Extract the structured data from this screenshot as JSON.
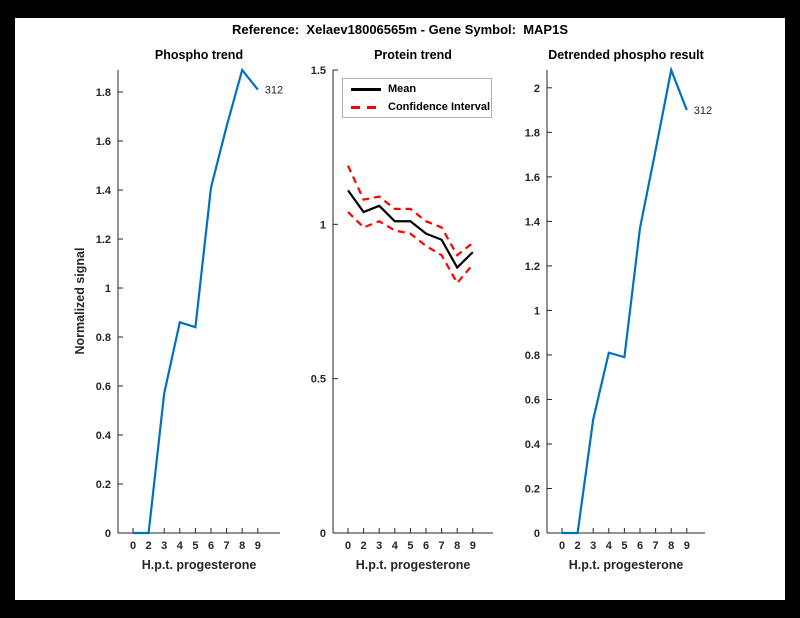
{
  "figure": {
    "title": "Reference:  Xelaev18006565m - Gene Symbol:  MAP1S",
    "background": "#ffffff",
    "page_background": "#000000",
    "axis_color": "#262626"
  },
  "chart_data": [
    {
      "type": "line",
      "title": "Phospho trend",
      "xlabel": "H.p.t. progesterone",
      "ylabel": "Normalized signal",
      "x_ticklabels": [
        "0",
        "2",
        "3",
        "4",
        "5",
        "6",
        "7",
        "8",
        "9"
      ],
      "y_tick_values": [
        0,
        0.2,
        0.4,
        0.6,
        0.8,
        1,
        1.2,
        1.4,
        1.6,
        1.8
      ],
      "y_tick_labels": [
        "0",
        "0.2",
        "0.4",
        "0.6",
        "0.8",
        "1",
        "1.2",
        "1.4",
        "1.6",
        "1.8"
      ],
      "ylim": [
        0,
        1.89
      ],
      "grid": false,
      "series": [
        {
          "name": "Phospho signal",
          "color": "#0072BD",
          "style": "solid",
          "values": [
            0,
            0,
            0.57,
            0.86,
            0.84,
            1.41,
            1.66,
            1.89,
            1.81
          ]
        }
      ],
      "annotation": {
        "text": "312",
        "point_index": 8
      }
    },
    {
      "type": "line",
      "title": "Protein trend",
      "xlabel": "H.p.t. progesterone",
      "ylabel": "",
      "x_ticklabels": [
        "0",
        "2",
        "3",
        "4",
        "5",
        "6",
        "7",
        "8",
        "9"
      ],
      "y_tick_values": [
        0,
        0.5,
        1,
        1.5
      ],
      "y_tick_labels": [
        "0",
        "0.5",
        "1",
        "1.5"
      ],
      "ylim": [
        0,
        1.5
      ],
      "grid": false,
      "legend": {
        "position": "north",
        "entries": [
          {
            "label": "Mean",
            "color": "#000000",
            "style": "solid"
          },
          {
            "label": "Confidence Interval",
            "color": "#ff0000",
            "style": "dashed"
          }
        ]
      },
      "series": [
        {
          "name": "Mean",
          "color": "#000000",
          "style": "solid",
          "values": [
            1.11,
            1.04,
            1.06,
            1.01,
            1.01,
            0.97,
            0.95,
            0.86,
            0.91
          ]
        },
        {
          "name": "CI upper",
          "color": "#ff0000",
          "style": "dashed",
          "values": [
            1.19,
            1.08,
            1.09,
            1.05,
            1.05,
            1.01,
            0.99,
            0.9,
            0.94
          ]
        },
        {
          "name": "CI lower",
          "color": "#ff0000",
          "style": "dashed",
          "values": [
            1.04,
            0.99,
            1.01,
            0.98,
            0.97,
            0.93,
            0.9,
            0.81,
            0.87
          ]
        }
      ]
    },
    {
      "type": "line",
      "title": "Detrended phospho result",
      "xlabel": "H.p.t. progesterone",
      "ylabel": "",
      "x_ticklabels": [
        "0",
        "2",
        "3",
        "4",
        "5",
        "6",
        "7",
        "8",
        "9"
      ],
      "y_tick_values": [
        0,
        0.2,
        0.4,
        0.6,
        0.8,
        1,
        1.2,
        1.4,
        1.6,
        1.8,
        2
      ],
      "y_tick_labels": [
        "0",
        "0.2",
        "0.4",
        "0.6",
        "0.8",
        "1",
        "1.2",
        "1.4",
        "1.6",
        "1.8",
        "2"
      ],
      "ylim": [
        0,
        2.08
      ],
      "grid": false,
      "series": [
        {
          "name": "Detrended phospho",
          "color": "#0072BD",
          "style": "solid",
          "values": [
            0,
            0,
            0.51,
            0.81,
            0.79,
            1.37,
            1.72,
            2.08,
            1.9
          ]
        }
      ],
      "annotation": {
        "text": "312",
        "point_index": 8
      }
    }
  ]
}
